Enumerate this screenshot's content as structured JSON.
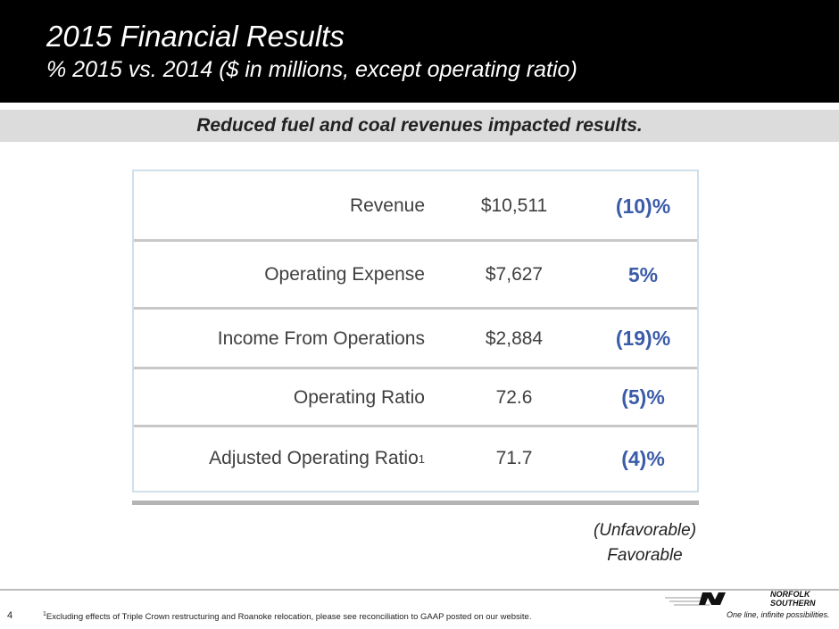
{
  "header": {
    "title": "2015 Financial Results",
    "subtitle": "% 2015 vs. 2014 ($ in millions, except operating ratio)"
  },
  "banner": "Reduced fuel and coal revenues impacted results.",
  "table": {
    "rows": [
      {
        "label": "Revenue",
        "value": "$10,511",
        "change": "(10)%"
      },
      {
        "label": "Operating Expense",
        "value": "$7,627",
        "change": "5%"
      },
      {
        "label": "Income From Operations",
        "value": "$2,884",
        "change": "(19)%"
      },
      {
        "label": "Operating Ratio",
        "value": "72.6",
        "change": "(5)%"
      },
      {
        "label": "Adjusted Operating Ratio",
        "footnote_mark": "1",
        "value": "71.7",
        "change": "(4)%"
      }
    ]
  },
  "legend": [
    "(Unfavorable)",
    "Favorable"
  ],
  "footer": {
    "page": "4",
    "footnote_mark": "1",
    "footnote": "Excluding effects of Triple Crown restructuring and Roanoke relocation, please see reconciliation to GAAP posted on our website."
  },
  "logo": {
    "lines": [
      "NORFOLK",
      "SOUTHERN"
    ],
    "tagline": "One line, infinite possibilities."
  }
}
